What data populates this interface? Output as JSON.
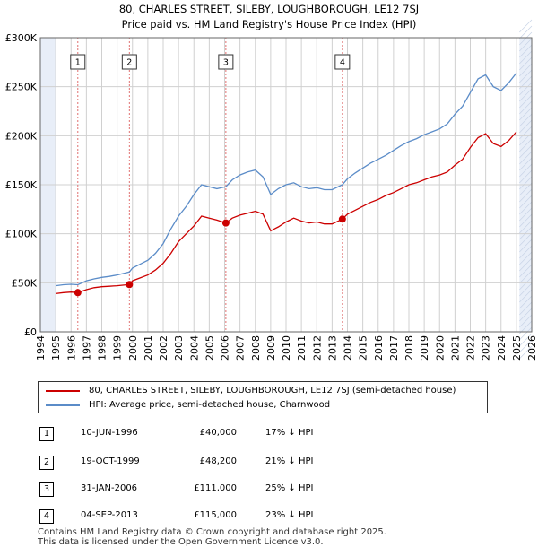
{
  "header": {
    "title_line1": "80, CHARLES STREET, SILEBY, LOUGHBOROUGH, LE12 7SJ",
    "title_line2": "Price paid vs. HM Land Registry's House Price Index (HPI)"
  },
  "legend": {
    "property_label": "80, CHARLES STREET, SILEBY, LOUGHBOROUGH, LE12 7SJ (semi-detached house)",
    "hpi_label": "HPI: Average price, semi-detached house, Charnwood"
  },
  "transactions": [
    {
      "num": "1",
      "date": "10-JUN-1996",
      "price": "£40,000",
      "hpi": "17% ↓ HPI"
    },
    {
      "num": "2",
      "date": "19-OCT-1999",
      "price": "£48,200",
      "hpi": "21% ↓ HPI"
    },
    {
      "num": "3",
      "date": "31-JAN-2006",
      "price": "£111,000",
      "hpi": "25% ↓ HPI"
    },
    {
      "num": "4",
      "date": "04-SEP-2013",
      "price": "£115,000",
      "hpi": "23% ↓ HPI"
    }
  ],
  "footer": {
    "line1": "Contains HM Land Registry data © Crown copyright and database right 2025.",
    "line2": "This data is licensed under the Open Government Licence v3.0."
  },
  "colors": {
    "property": "#cc0000",
    "hpi": "#5b8cc8",
    "grid": "#d0d0d0",
    "shade": "#e8eef8",
    "marker_line": "#e07070"
  },
  "chart_data": {
    "type": "line",
    "title": "80, CHARLES STREET, SILEBY, LOUGHBOROUGH, LE12 7SJ — Price paid vs. HM Land Registry's House Price Index (HPI)",
    "xlabel": "",
    "ylabel": "",
    "xlim": [
      1994,
      2026
    ],
    "ylim": [
      0,
      300000
    ],
    "y_ticks": [
      0,
      50000,
      100000,
      150000,
      200000,
      250000,
      300000
    ],
    "y_tick_labels": [
      "£0",
      "£50K",
      "£100K",
      "£150K",
      "£200K",
      "£250K",
      "£300K"
    ],
    "x_ticks": [
      1994,
      1995,
      1996,
      1997,
      1998,
      1999,
      2000,
      2001,
      2002,
      2003,
      2004,
      2005,
      2006,
      2007,
      2008,
      2009,
      2010,
      2011,
      2012,
      2013,
      2014,
      2015,
      2016,
      2017,
      2018,
      2019,
      2020,
      2021,
      2022,
      2023,
      2024,
      2025,
      2026
    ],
    "shaded_regions": [
      [
        1994,
        1995
      ],
      [
        2025.2,
        2026
      ]
    ],
    "sales": [
      {
        "label": "1",
        "x": 1996.44,
        "y": 40000
      },
      {
        "label": "2",
        "x": 1999.8,
        "y": 48200
      },
      {
        "label": "3",
        "x": 2006.08,
        "y": 111000
      },
      {
        "label": "4",
        "x": 2013.67,
        "y": 115000
      }
    ],
    "series": [
      {
        "name": "80, CHARLES STREET, SILEBY, LOUGHBOROUGH, LE12 7SJ (semi-detached house)",
        "x": [
          1995,
          1995.5,
          1996,
          1996.44,
          1997,
          1997.5,
          1998,
          1998.5,
          1999,
          1999.8,
          2000,
          2000.5,
          2001,
          2001.5,
          2002,
          2002.5,
          2003,
          2003.5,
          2004,
          2004.5,
          2005,
          2005.5,
          2006.08,
          2006.5,
          2007,
          2007.5,
          2008,
          2008.5,
          2009,
          2009.5,
          2010,
          2010.5,
          2011,
          2011.5,
          2012,
          2012.5,
          2013,
          2013.67,
          2014,
          2014.5,
          2015,
          2015.5,
          2016,
          2016.5,
          2017,
          2017.5,
          2018,
          2018.5,
          2019,
          2019.5,
          2020,
          2020.5,
          2021,
          2021.5,
          2022,
          2022.5,
          2023,
          2023.5,
          2024,
          2024.5,
          2025
        ],
        "y": [
          39000,
          40000,
          40500,
          40000,
          43000,
          45000,
          46000,
          46500,
          47000,
          48200,
          52000,
          55000,
          58000,
          63000,
          70000,
          80000,
          92000,
          100000,
          108000,
          118000,
          116000,
          114000,
          111000,
          116000,
          119000,
          121000,
          123000,
          120000,
          103000,
          107000,
          112000,
          116000,
          113000,
          111000,
          112000,
          110000,
          110000,
          115000,
          120000,
          124000,
          128000,
          132000,
          135000,
          139000,
          142000,
          146000,
          150000,
          152000,
          155000,
          158000,
          160000,
          163000,
          170000,
          176000,
          188000,
          198000,
          202000,
          192000,
          189000,
          195000,
          204000
        ]
      },
      {
        "name": "HPI: Average price, semi-detached house, Charnwood",
        "x": [
          1995,
          1995.5,
          1996,
          1996.44,
          1997,
          1997.5,
          1998,
          1998.5,
          1999,
          1999.8,
          2000,
          2000.5,
          2001,
          2001.5,
          2002,
          2002.5,
          2003,
          2003.5,
          2004,
          2004.5,
          2005,
          2005.5,
          2006.08,
          2006.5,
          2007,
          2007.5,
          2008,
          2008.5,
          2009,
          2009.5,
          2010,
          2010.5,
          2011,
          2011.5,
          2012,
          2012.5,
          2013,
          2013.67,
          2014,
          2014.5,
          2015,
          2015.5,
          2016,
          2016.5,
          2017,
          2017.5,
          2018,
          2018.5,
          2019,
          2019.5,
          2020,
          2020.5,
          2021,
          2021.5,
          2022,
          2022.5,
          2023,
          2023.5,
          2024,
          2024.5,
          2025
        ],
        "y": [
          47000,
          48000,
          48500,
          48000,
          52000,
          54000,
          55500,
          56500,
          58000,
          61000,
          65000,
          69000,
          73000,
          80000,
          90000,
          105000,
          118000,
          128000,
          140000,
          150000,
          148000,
          146000,
          148000,
          155000,
          160000,
          163000,
          165000,
          158000,
          140000,
          146000,
          150000,
          152000,
          148000,
          146000,
          147000,
          145000,
          145000,
          150000,
          156000,
          162000,
          167000,
          172000,
          176000,
          180000,
          185000,
          190000,
          194000,
          197000,
          201000,
          204000,
          207000,
          212000,
          222000,
          230000,
          244000,
          258000,
          262000,
          250000,
          246000,
          254000,
          264000
        ]
      }
    ]
  }
}
